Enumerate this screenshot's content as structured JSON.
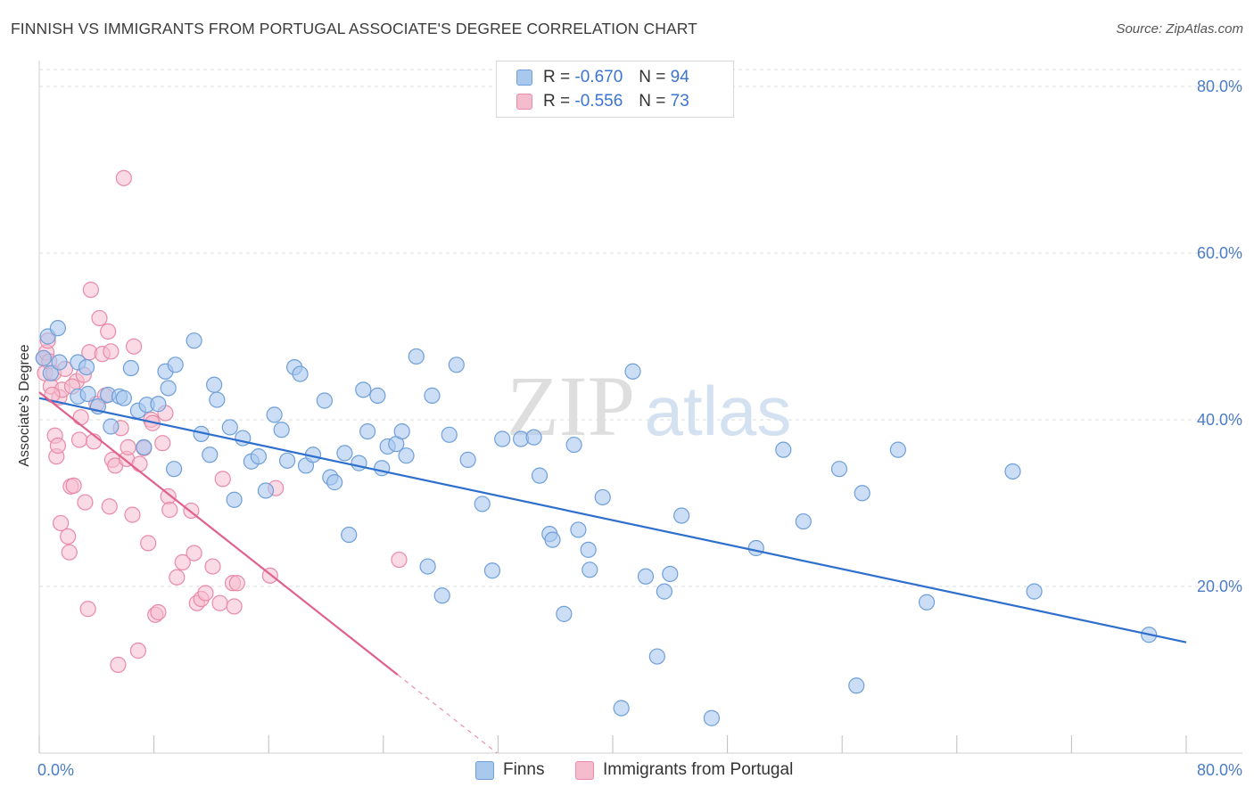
{
  "title": "FINNISH VS IMMIGRANTS FROM PORTUGAL ASSOCIATE'S DEGREE CORRELATION CHART",
  "source": "Source: ZipAtlas.com",
  "watermark": {
    "zip": "ZIP",
    "atlas": "atlas"
  },
  "legend": {
    "r_label": "R =",
    "n_label": "N =",
    "items": [
      {
        "r": "-0.670",
        "n": "94"
      },
      {
        "r": "-0.556",
        "n": "73"
      }
    ]
  },
  "colors": {
    "finns_fill": "#a9c8ee",
    "finns_stroke": "#6f9fd9",
    "finns_line": "#2e6fce",
    "portugal_fill": "#f5bccd",
    "portugal_stroke": "#e98aa8",
    "portugal_line": "#e0628b",
    "tick_text": "#4a7cc7",
    "grid": "#dcdcdc"
  },
  "chart_data": {
    "type": "scatter",
    "title": "FINNISH VS IMMIGRANTS FROM PORTUGAL ASSOCIATE'S DEGREE CORRELATION CHART",
    "xlabel": "",
    "ylabel": "Associate's Degree",
    "xlim": [
      0,
      80
    ],
    "ylim": [
      0,
      80
    ],
    "x_tick_labels": [
      "0.0%",
      "80.0%"
    ],
    "y_tick_labels": [
      "20.0%",
      "40.0%",
      "60.0%",
      "80.0%"
    ],
    "y_ticks": [
      20,
      40,
      60,
      80
    ],
    "grid": "horizontal dashed",
    "legend_position": "top-center",
    "series": [
      {
        "name": "Finns",
        "trend": {
          "x": [
            0,
            80
          ],
          "y": [
            42.6,
            13.3
          ]
        },
        "points": [
          [
            0.3,
            47.4
          ],
          [
            0.6,
            50.0
          ],
          [
            1.3,
            51.0
          ],
          [
            0.8,
            45.6
          ],
          [
            1.4,
            46.9
          ],
          [
            2.7,
            46.9
          ],
          [
            3.3,
            46.3
          ],
          [
            2.7,
            42.8
          ],
          [
            3.4,
            43.1
          ],
          [
            4.1,
            41.6
          ],
          [
            4.8,
            43.0
          ],
          [
            5.0,
            39.2
          ],
          [
            5.6,
            42.8
          ],
          [
            5.9,
            42.6
          ],
          [
            6.4,
            46.2
          ],
          [
            6.9,
            41.1
          ],
          [
            7.3,
            36.7
          ],
          [
            7.5,
            41.8
          ],
          [
            8.3,
            41.9
          ],
          [
            8.8,
            45.8
          ],
          [
            9.0,
            43.8
          ],
          [
            9.5,
            46.6
          ],
          [
            9.4,
            34.1
          ],
          [
            10.8,
            49.5
          ],
          [
            11.3,
            38.3
          ],
          [
            11.9,
            35.8
          ],
          [
            12.2,
            44.2
          ],
          [
            12.4,
            42.4
          ],
          [
            13.3,
            39.1
          ],
          [
            13.6,
            30.4
          ],
          [
            14.2,
            37.8
          ],
          [
            14.8,
            35.0
          ],
          [
            15.3,
            35.6
          ],
          [
            15.8,
            31.5
          ],
          [
            16.4,
            40.6
          ],
          [
            16.9,
            38.8
          ],
          [
            17.3,
            35.1
          ],
          [
            17.8,
            46.3
          ],
          [
            18.2,
            45.5
          ],
          [
            18.6,
            34.5
          ],
          [
            19.1,
            35.8
          ],
          [
            19.9,
            42.3
          ],
          [
            20.3,
            33.1
          ],
          [
            20.6,
            32.5
          ],
          [
            21.3,
            36.0
          ],
          [
            21.6,
            26.2
          ],
          [
            22.3,
            34.8
          ],
          [
            22.6,
            43.6
          ],
          [
            22.9,
            38.6
          ],
          [
            23.6,
            42.9
          ],
          [
            23.9,
            34.2
          ],
          [
            24.3,
            36.8
          ],
          [
            24.9,
            37.1
          ],
          [
            25.3,
            38.6
          ],
          [
            25.6,
            35.7
          ],
          [
            26.3,
            47.6
          ],
          [
            27.1,
            22.4
          ],
          [
            27.4,
            42.9
          ],
          [
            28.1,
            18.9
          ],
          [
            28.6,
            38.2
          ],
          [
            29.1,
            46.6
          ],
          [
            29.9,
            35.2
          ],
          [
            30.9,
            29.9
          ],
          [
            31.6,
            21.9
          ],
          [
            32.3,
            37.7
          ],
          [
            33.6,
            37.7
          ],
          [
            34.5,
            37.9
          ],
          [
            34.9,
            33.3
          ],
          [
            35.6,
            26.3
          ],
          [
            35.8,
            25.6
          ],
          [
            36.6,
            16.7
          ],
          [
            37.3,
            37.0
          ],
          [
            37.6,
            26.8
          ],
          [
            38.3,
            24.4
          ],
          [
            38.4,
            22.0
          ],
          [
            39.3,
            30.7
          ],
          [
            40.6,
            5.4
          ],
          [
            41.4,
            45.8
          ],
          [
            42.3,
            21.2
          ],
          [
            43.1,
            11.6
          ],
          [
            43.6,
            19.4
          ],
          [
            44.0,
            21.5
          ],
          [
            44.8,
            28.5
          ],
          [
            46.9,
            4.2
          ],
          [
            50.0,
            24.6
          ],
          [
            51.9,
            36.4
          ],
          [
            53.3,
            27.8
          ],
          [
            55.8,
            34.1
          ],
          [
            57.0,
            8.1
          ],
          [
            57.4,
            31.2
          ],
          [
            59.9,
            36.4
          ],
          [
            61.9,
            18.1
          ],
          [
            67.9,
            33.8
          ],
          [
            69.4,
            19.4
          ],
          [
            77.4,
            14.2
          ]
        ]
      },
      {
        "name": "Immigrants from Portugal",
        "trend": {
          "x": [
            0,
            25
          ],
          "y": [
            43.3,
            9.4
          ]
        },
        "points": [
          [
            0.3,
            47.4
          ],
          [
            0.4,
            45.6
          ],
          [
            0.5,
            48.1
          ],
          [
            0.6,
            49.5
          ],
          [
            0.7,
            47.0
          ],
          [
            0.8,
            44.0
          ],
          [
            1.0,
            45.6
          ],
          [
            1.1,
            38.1
          ],
          [
            1.2,
            35.6
          ],
          [
            1.3,
            36.9
          ],
          [
            1.4,
            42.7
          ],
          [
            1.5,
            27.6
          ],
          [
            1.6,
            43.6
          ],
          [
            1.8,
            46.1
          ],
          [
            2.0,
            26.0
          ],
          [
            2.1,
            24.1
          ],
          [
            2.2,
            32.0
          ],
          [
            2.4,
            32.1
          ],
          [
            2.6,
            44.6
          ],
          [
            2.8,
            37.6
          ],
          [
            2.9,
            40.3
          ],
          [
            3.1,
            45.4
          ],
          [
            3.2,
            30.1
          ],
          [
            3.4,
            17.3
          ],
          [
            3.5,
            48.1
          ],
          [
            3.6,
            55.6
          ],
          [
            3.8,
            37.4
          ],
          [
            4.0,
            41.9
          ],
          [
            4.2,
            52.2
          ],
          [
            4.4,
            47.9
          ],
          [
            4.6,
            42.9
          ],
          [
            4.8,
            50.6
          ],
          [
            4.9,
            29.6
          ],
          [
            5.0,
            48.2
          ],
          [
            5.1,
            35.2
          ],
          [
            5.3,
            34.5
          ],
          [
            5.5,
            10.6
          ],
          [
            5.7,
            39.0
          ],
          [
            5.9,
            69.0
          ],
          [
            6.1,
            35.3
          ],
          [
            6.2,
            36.7
          ],
          [
            6.5,
            28.6
          ],
          [
            6.6,
            48.8
          ],
          [
            6.9,
            12.3
          ],
          [
            7.0,
            34.7
          ],
          [
            7.3,
            36.6
          ],
          [
            7.6,
            25.2
          ],
          [
            7.8,
            40.0
          ],
          [
            7.9,
            39.6
          ],
          [
            8.1,
            16.6
          ],
          [
            8.3,
            16.9
          ],
          [
            8.6,
            37.2
          ],
          [
            8.8,
            40.8
          ],
          [
            9.0,
            30.8
          ],
          [
            9.1,
            29.2
          ],
          [
            9.6,
            21.1
          ],
          [
            10.0,
            22.9
          ],
          [
            10.6,
            29.1
          ],
          [
            10.8,
            24.0
          ],
          [
            11.0,
            18.0
          ],
          [
            11.3,
            18.5
          ],
          [
            11.6,
            19.2
          ],
          [
            12.1,
            22.4
          ],
          [
            12.6,
            18.0
          ],
          [
            12.8,
            32.9
          ],
          [
            13.5,
            20.4
          ],
          [
            13.6,
            17.6
          ],
          [
            13.8,
            20.4
          ],
          [
            16.1,
            21.3
          ],
          [
            16.5,
            31.8
          ],
          [
            25.1,
            23.2
          ],
          [
            0.9,
            43.0
          ],
          [
            2.3,
            44.0
          ]
        ]
      }
    ]
  },
  "bottom_legend": [
    "Finns",
    "Immigrants from Portugal"
  ]
}
